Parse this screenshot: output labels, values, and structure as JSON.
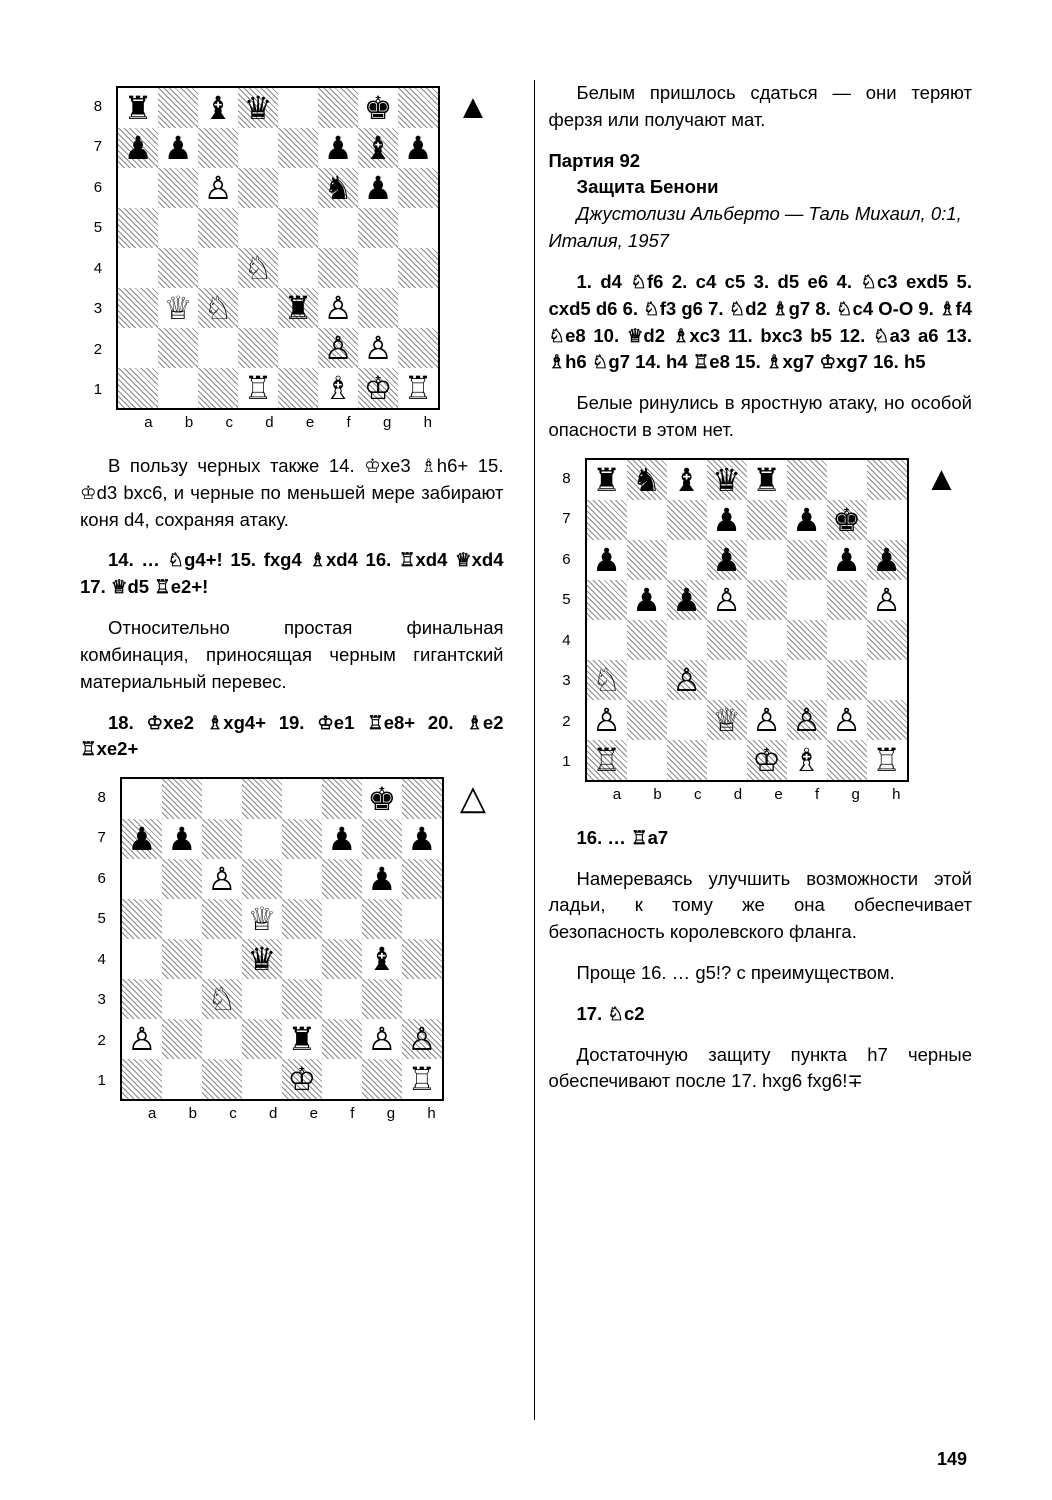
{
  "page_number": "149",
  "left": {
    "board1": {
      "fen_pieces": {
        "a8": "♜",
        "c8": "♝",
        "d8": "♛",
        "g8": "♚",
        "a7": "♟",
        "b7": "♟",
        "f7": "♟",
        "g7": "♝",
        "h7": "♟",
        "c6": "♙",
        "f6": "♞",
        "g6": "♟",
        "d4": "♘",
        "b3": "♕",
        "c3": "♘",
        "e3": "♜",
        "f3": "♙",
        "f2": "♙",
        "g2": "♙",
        "d1": "♖",
        "f1": "♗",
        "g1": "♔",
        "h1": "♖"
      },
      "turn": "black"
    },
    "p1": "В пользу черных также 14. ♔xe3 ♗h6+ 15. ♔d3 bxc6, и черные по меньшей мере забирают коня d4, сохраняя атаку.",
    "m1": "14. … ♘g4+!    15. fxg4    ♗xd4 16. ♖xd4 ♕xd4 17. ♕d5 ♖e2+!",
    "p2": "Относительно простая финальная комбинация, приносящая черным гигантский материальный перевес.",
    "m2": "18. ♔xe2 ♗xg4+ 19. ♔e1 ♖e8+ 20. ♗e2 ♖xe2+",
    "board2": {
      "fen_pieces": {
        "g8": "♚",
        "a7": "♟",
        "b7": "♟",
        "f7": "♟",
        "h7": "♟",
        "c6": "♙",
        "g6": "♟",
        "d5": "♕",
        "d4": "♛",
        "g4": "♝",
        "c3": "♘",
        "a2": "♙",
        "e2": "♜",
        "g2": "♙",
        "h2": "♙",
        "e1": "♔",
        "h1": "♖"
      },
      "turn": "white"
    }
  },
  "right": {
    "p0": "Белым пришлось сдаться — они теряют ферзя или получают мат.",
    "game": {
      "num": "Партия 92",
      "defense": "Защита Бенони",
      "players": "Джустолизи Альберто — Таль Михаил, 0:1, Италия, 1957"
    },
    "m1": "1. d4 ♘f6 2. c4 c5 3. d5 e6 4. ♘c3 exd5 5. cxd5 d6 6. ♘f3 g6 7. ♘d2 ♗g7 8. ♘c4 O-O 9. ♗f4 ♘e8 10. ♕d2 ♗xc3 11. bxc3 b5 12. ♘a3 a6 13. ♗h6 ♘g7 14. h4 ♖e8 15. ♗xg7 ♔xg7 16. h5",
    "p1": "Белые ринулись в яростную атаку, но особой опасности в этом нет.",
    "board1": {
      "fen_pieces": {
        "a8": "♜",
        "b8": "♞",
        "c8": "♝",
        "d8": "♛",
        "e8": "♜",
        "d7": "♟",
        "f7": "♟",
        "g7": "♚",
        "a6": "♟",
        "d6": "♟",
        "g6": "♟",
        "h6": "♟",
        "b5": "♟",
        "c5": "♟",
        "d5": "♙",
        "h5": "♙",
        "a3": "♘",
        "c3": "♙",
        "a2": "♙",
        "d2": "♕",
        "e2": "♙",
        "f2": "♙",
        "g2": "♙",
        "a1": "♖",
        "e1": "♔",
        "f1": "♗",
        "h1": "♖"
      },
      "turn": "black"
    },
    "m2": "16. … ♖a7",
    "p2": "Намереваясь улучшить возможности этой ладьи, к тому же она обеспечивает безопасность королевского фланга.",
    "p3": "Проще 16. … g5!? с преимуществом.",
    "m3": "17. ♘c2",
    "p4": "Достаточную защиту пункта h7 черные обеспечивают после 17. hxg6 fxg6!∓"
  },
  "ranks": [
    "8",
    "7",
    "6",
    "5",
    "4",
    "3",
    "2",
    "1"
  ],
  "files": [
    "a",
    "b",
    "c",
    "d",
    "e",
    "f",
    "g",
    "h"
  ],
  "turn_symbols": {
    "black": "▲",
    "white": "△"
  }
}
